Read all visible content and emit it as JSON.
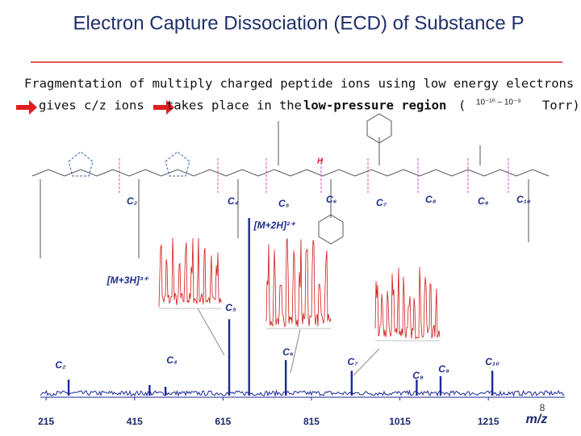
{
  "header": {
    "title": "Electron Capture Dissociation (ECD) of Substance P"
  },
  "bullets": [
    "Fragmentation of multiply charged peptide ions using low energy electrons",
    "gives c/z ions",
    "takes place in the",
    "low-pressure region",
    "(",
    "10⁻¹⁰ – 10⁻⁹",
    "Torr)"
  ],
  "structure_labels": [
    "C₂",
    "C₄",
    "C₅",
    "C₆",
    "C₇",
    "C₈",
    "C₉",
    "C₁₀",
    "H"
  ],
  "spectrum": {
    "xlim": [
      202,
      1388
    ],
    "xticks": [
      215,
      415,
      615,
      815,
      1015,
      1215
    ],
    "xlabel": "m/z",
    "peaks": [
      {
        "label": "C₂",
        "x": 266,
        "intensity": 9
      },
      {
        "label": "[M+3H]³⁺",
        "x": 449,
        "intensity": 6
      },
      {
        "label": "C₄",
        "x": 485,
        "intensity": 5
      },
      {
        "label": "C₅",
        "x": 629,
        "intensity": 43
      },
      {
        "label": "[M+2H]²⁺",
        "x": 674,
        "intensity": 100
      },
      {
        "label": "C₆",
        "x": 757,
        "intensity": 20
      },
      {
        "label": "C₇",
        "x": 906,
        "intensity": 14
      },
      {
        "label": "C₈",
        "x": 1053,
        "intensity": 9
      },
      {
        "label": "C₉",
        "x": 1107,
        "intensity": 11
      },
      {
        "label": "C₁₀",
        "x": 1224,
        "intensity": 14
      }
    ]
  },
  "page_number": "8"
}
